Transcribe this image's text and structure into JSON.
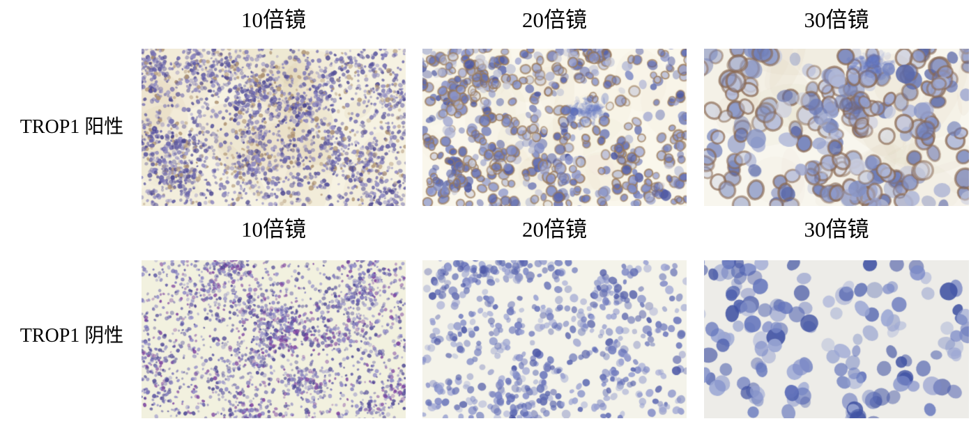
{
  "figure": {
    "rows": [
      {
        "label": "TROP1 阳性",
        "headers": [
          "10倍镜",
          "20倍镜",
          "30倍镜"
        ],
        "panels": [
          {
            "name": "trop1-positive-10x",
            "background": "#f6f2e2",
            "wash": "#d8c39a",
            "cell_colors": [
              "#7b76b5",
              "#5a569e",
              "#4a4590",
              "#8d88c1",
              "#6a65aa",
              "#ad9272"
            ],
            "count": 2600,
            "radius": [
              1.6,
              3.6
            ],
            "ring": null,
            "ring_prob": 0,
            "smudge": null,
            "seed": 11
          },
          {
            "name": "trop1-positive-20x",
            "background": "#faf7ec",
            "wash": "#e8dcc2",
            "cell_colors": [
              "#6672b4",
              "#4d58a2",
              "#7e8ac4",
              "#8e97cb",
              "#5a66ae",
              "#c4c6d6"
            ],
            "count": 620,
            "radius": [
              4.5,
              8
            ],
            "ring": "#9a7854",
            "ring_prob": 0.55,
            "smudge": {
              "x": 0.63,
              "y": 0.4,
              "color": "#5b6fc0"
            },
            "seed": 22
          },
          {
            "name": "trop1-positive-30x",
            "background": "#f8f6ee",
            "wash": "#ded0b8",
            "cell_colors": [
              "#8290c3",
              "#6a7ab8",
              "#95a0cd",
              "#b0b8d8",
              "#5a68a8",
              "#c9cdde"
            ],
            "count": 270,
            "radius": [
              9,
              14
            ],
            "ring": "#8a6850",
            "ring_prob": 0.7,
            "smudge": {
              "x": 0.63,
              "y": 0.1,
              "color": "#5f73c2"
            },
            "seed": 33
          }
        ]
      },
      {
        "label": "TROP1 阴性",
        "headers": [
          "10倍镜",
          "20倍镜",
          "30倍镜"
        ],
        "panels": [
          {
            "name": "trop1-negative-10x",
            "background": "#f2f1df",
            "wash": null,
            "cell_colors": [
              "#7973b8",
              "#908bc7",
              "#5e58a4",
              "#4d4794",
              "#7d44a0"
            ],
            "count": 2400,
            "radius": [
              1.4,
              3.2
            ],
            "ring": null,
            "ring_prob": 0,
            "smudge": null,
            "seed": 44
          },
          {
            "name": "trop1-negative-20x",
            "background": "#f4f3ea",
            "wash": null,
            "cell_colors": [
              "#5d69b2",
              "#7e88c6",
              "#4c57a6",
              "#9aa2d2",
              "#6b76bb"
            ],
            "count": 600,
            "radius": [
              3.5,
              6.5
            ],
            "ring": null,
            "ring_prob": 0,
            "smudge": null,
            "seed": 55
          },
          {
            "name": "trop1-negative-30x",
            "background": "#edece8",
            "wash": null,
            "cell_colors": [
              "#4e60ae",
              "#7b8ac8",
              "#3f51a2",
              "#9aa6d4",
              "#6374bc"
            ],
            "count": 155,
            "radius": [
              8,
              13
            ],
            "ring": null,
            "ring_prob": 0,
            "smudge": null,
            "seed": 66
          }
        ]
      }
    ]
  }
}
